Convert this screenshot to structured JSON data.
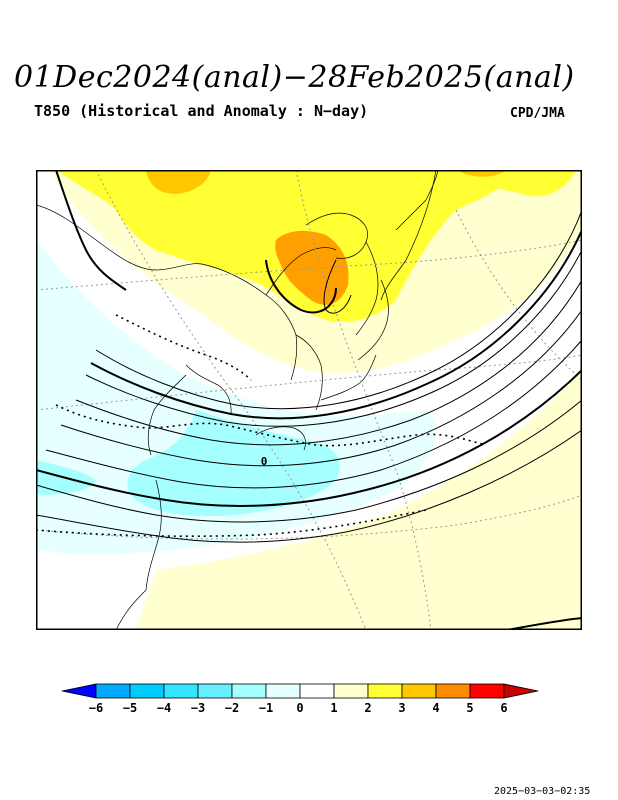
{
  "header": {
    "title": "01Dec2024(anal)−28Feb2025(anal)",
    "subtitle": "T850 (Historical and Anomaly : N−day)",
    "agency": "CPD/JMA"
  },
  "map": {
    "contour_label": "0",
    "colors": {
      "dark_orange": "#ffa000",
      "orange": "#ffc700",
      "yellow": "#ffff33",
      "pale_yellow": "#ffffd0",
      "pale_cyan": "#e6ffff",
      "light_cyan": "#a6ffff",
      "cyan": "#00e5ff"
    }
  },
  "colorbar": {
    "labels": [
      "−6",
      "−5",
      "−4",
      "−3",
      "−2",
      "−1",
      "0",
      "1",
      "2",
      "3",
      "4",
      "5",
      "6"
    ],
    "colors": [
      "#0000ff",
      "#00aaff",
      "#00ccff",
      "#33e5ff",
      "#66f0ff",
      "#a6ffff",
      "#e6ffff",
      "#ffffff",
      "#ffffd0",
      "#ffff33",
      "#ffc700",
      "#ff8c00",
      "#ff0000",
      "#c80000"
    ]
  },
  "footer": {
    "timestamp": "2025−03−03−02:35"
  }
}
